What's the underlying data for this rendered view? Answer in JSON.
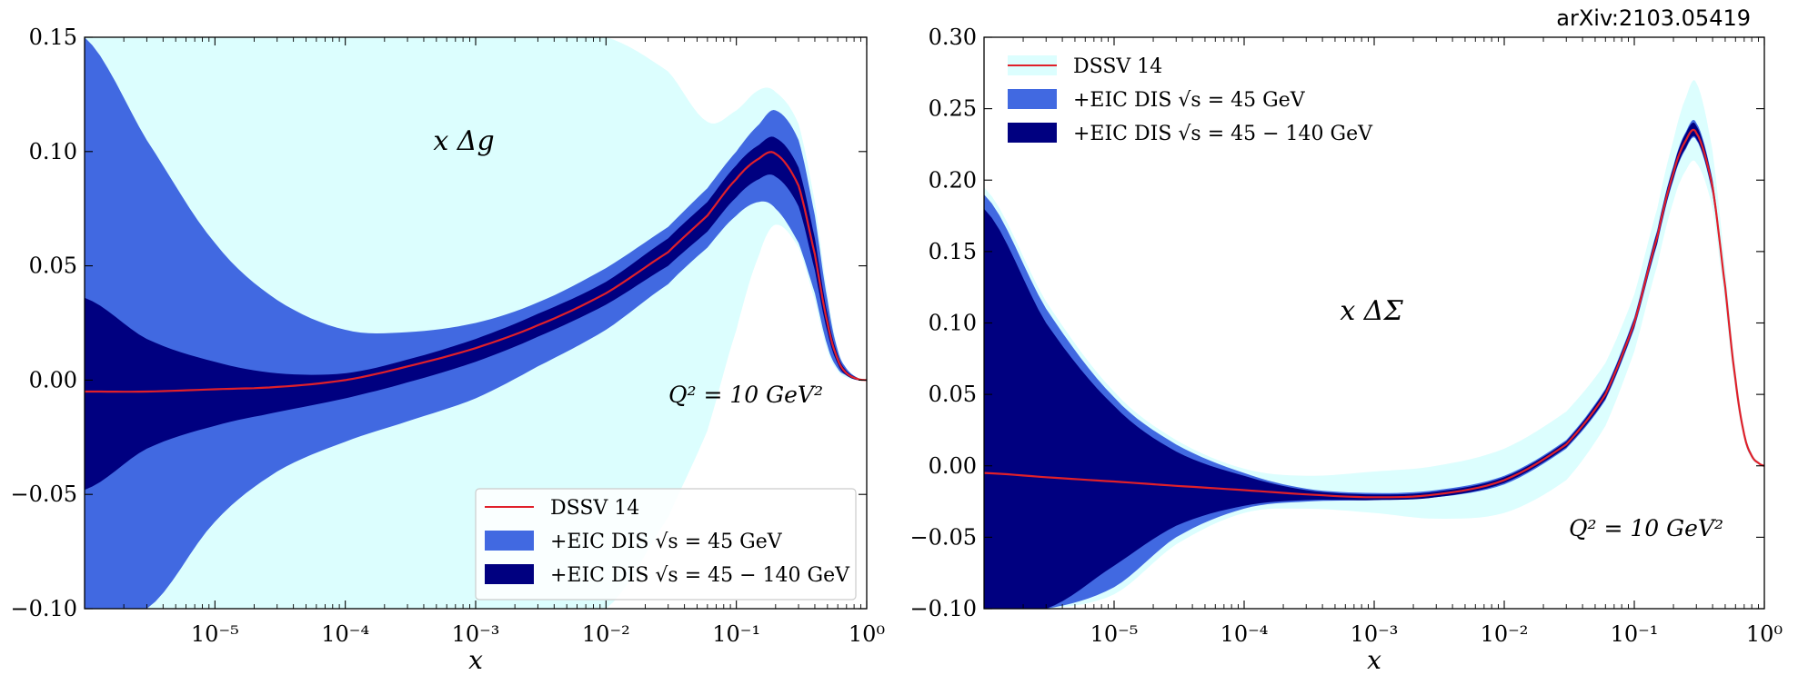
{
  "source_label": "arXiv:2103.05419",
  "colors": {
    "light_band": "#dcfefe",
    "mid_band": "#4169e1",
    "dark_band": "#000080",
    "central_line": "#e0202a"
  },
  "legend_entries": [
    "DSSV 14",
    "+EIC DIS √s = 45 GeV",
    "+EIC DIS √s = 45 − 140 GeV"
  ],
  "chart_data": [
    {
      "type": "line",
      "panel_label": "x Δg",
      "annotation": "Q² = 10 GeV²",
      "xlabel": "x",
      "ylabel": "",
      "x_scale": "log",
      "xlim": [
        1e-06,
        1
      ],
      "ylim": [
        -0.1,
        0.15
      ],
      "x_ticks": [
        1e-05,
        0.0001,
        0.001,
        0.01,
        0.1,
        1
      ],
      "x_tick_labels": [
        "10⁻⁵",
        "10⁻⁴",
        "10⁻³",
        "10⁻²",
        "10⁻¹",
        "10⁰"
      ],
      "y_ticks": [
        -0.1,
        -0.05,
        0.0,
        0.05,
        0.1,
        0.15
      ],
      "y_tick_labels": [
        "−0.10",
        "−0.05",
        "0.00",
        "0.05",
        "0.10",
        "0.15"
      ],
      "legend_position": "lower-right",
      "x": [
        1e-06,
        3e-06,
        1e-05,
        3e-05,
        0.0001,
        0.0003,
        0.001,
        0.003,
        0.01,
        0.03,
        0.06,
        0.1,
        0.15,
        0.2,
        0.3,
        0.4,
        0.5,
        0.6,
        0.7,
        0.85,
        1.0
      ],
      "series": [
        {
          "name": "DSSV 14",
          "kind": "line",
          "y": [
            -0.005,
            -0.005,
            -0.004,
            -0.003,
            0.0,
            0.006,
            0.014,
            0.024,
            0.038,
            0.056,
            0.072,
            0.088,
            0.097,
            0.099,
            0.085,
            0.055,
            0.025,
            0.009,
            0.003,
            0.0005,
            0.0
          ]
        },
        {
          "name": "+EIC DIS √s = 45 GeV",
          "kind": "band",
          "low": [
            -0.1,
            -0.1,
            -0.062,
            -0.04,
            -0.027,
            -0.018,
            -0.008,
            0.006,
            0.022,
            0.042,
            0.058,
            0.072,
            0.078,
            0.075,
            0.06,
            0.038,
            0.015,
            0.005,
            0.002,
            0.0,
            0.0
          ],
          "high": [
            0.15,
            0.105,
            0.06,
            0.035,
            0.022,
            0.021,
            0.025,
            0.034,
            0.049,
            0.067,
            0.084,
            0.1,
            0.112,
            0.118,
            0.105,
            0.072,
            0.035,
            0.013,
            0.005,
            0.001,
            0.0
          ]
        },
        {
          "name": "+EIC DIS √s = 45 − 140 GeV",
          "kind": "band",
          "low": [
            -0.048,
            -0.03,
            -0.02,
            -0.014,
            -0.008,
            -0.001,
            0.008,
            0.019,
            0.033,
            0.05,
            0.065,
            0.08,
            0.088,
            0.089,
            0.076,
            0.048,
            0.021,
            0.007,
            0.002,
            0.0,
            0.0
          ],
          "high": [
            0.036,
            0.018,
            0.008,
            0.003,
            0.003,
            0.009,
            0.018,
            0.029,
            0.043,
            0.062,
            0.078,
            0.094,
            0.103,
            0.106,
            0.093,
            0.062,
            0.029,
            0.011,
            0.004,
            0.001,
            0.0
          ]
        },
        {
          "name": "DSSV 14 uncertainty",
          "kind": "band",
          "low": [
            -0.1,
            -0.1,
            -0.1,
            -0.1,
            -0.1,
            -0.1,
            -0.1,
            -0.1,
            -0.1,
            -0.06,
            -0.022,
            0.022,
            0.055,
            0.068,
            0.058,
            0.035,
            0.013,
            0.004,
            0.001,
            0.0,
            0.0
          ],
          "high": [
            0.15,
            0.15,
            0.15,
            0.15,
            0.15,
            0.15,
            0.15,
            0.15,
            0.15,
            0.135,
            0.113,
            0.118,
            0.127,
            0.126,
            0.112,
            0.078,
            0.038,
            0.014,
            0.005,
            0.001,
            0.0
          ]
        }
      ]
    },
    {
      "type": "line",
      "panel_label": "x ΔΣ",
      "annotation": "Q² = 10 GeV²",
      "xlabel": "x",
      "ylabel": "",
      "x_scale": "log",
      "xlim": [
        1e-06,
        1
      ],
      "ylim": [
        -0.1,
        0.3
      ],
      "x_ticks": [
        1e-05,
        0.0001,
        0.001,
        0.01,
        0.1,
        1
      ],
      "x_tick_labels": [
        "10⁻⁵",
        "10⁻⁴",
        "10⁻³",
        "10⁻²",
        "10⁻¹",
        "10⁰"
      ],
      "y_ticks": [
        -0.1,
        -0.05,
        0.0,
        0.05,
        0.1,
        0.15,
        0.2,
        0.25,
        0.3
      ],
      "y_tick_labels": [
        "−0.10",
        "−0.05",
        "0.00",
        "0.05",
        "0.10",
        "0.15",
        "0.20",
        "0.25",
        "0.30"
      ],
      "legend_position": "top-left",
      "x": [
        1e-06,
        3e-06,
        1e-05,
        3e-05,
        0.0001,
        0.0003,
        0.001,
        0.003,
        0.01,
        0.03,
        0.06,
        0.1,
        0.15,
        0.2,
        0.25,
        0.3,
        0.4,
        0.5,
        0.6,
        0.7,
        0.8,
        0.9,
        1.0
      ],
      "series": [
        {
          "name": "DSSV 14",
          "kind": "line",
          "y": [
            -0.005,
            -0.008,
            -0.011,
            -0.014,
            -0.017,
            -0.02,
            -0.022,
            -0.02,
            -0.01,
            0.015,
            0.05,
            0.1,
            0.16,
            0.205,
            0.228,
            0.233,
            0.195,
            0.125,
            0.06,
            0.022,
            0.007,
            0.002,
            0.0
          ]
        },
        {
          "name": "+EIC DIS √s = 45 GeV",
          "kind": "band",
          "low": [
            -0.1,
            -0.1,
            -0.085,
            -0.05,
            -0.03,
            -0.025,
            -0.024,
            -0.022,
            -0.013,
            0.012,
            0.046,
            0.096,
            0.155,
            0.2,
            0.222,
            0.228,
            0.19,
            0.121,
            0.057,
            0.02,
            0.006,
            0.002,
            0.0
          ],
          "high": [
            0.19,
            0.11,
            0.048,
            0.015,
            -0.005,
            -0.016,
            -0.019,
            -0.017,
            -0.007,
            0.018,
            0.054,
            0.104,
            0.165,
            0.21,
            0.234,
            0.24,
            0.2,
            0.129,
            0.063,
            0.024,
            0.008,
            0.002,
            0.0
          ]
        },
        {
          "name": "+EIC DIS √s = 45 − 140 GeV",
          "kind": "band",
          "low": [
            -0.1,
            -0.1,
            -0.07,
            -0.042,
            -0.028,
            -0.024,
            -0.024,
            -0.022,
            -0.012,
            0.013,
            0.047,
            0.097,
            0.156,
            0.201,
            0.223,
            0.229,
            0.191,
            0.122,
            0.058,
            0.02,
            0.006,
            0.002,
            0.0
          ],
          "high": [
            0.18,
            0.1,
            0.042,
            0.01,
            -0.007,
            -0.017,
            -0.02,
            -0.018,
            -0.008,
            0.017,
            0.053,
            0.103,
            0.164,
            0.209,
            0.233,
            0.238,
            0.199,
            0.128,
            0.062,
            0.023,
            0.008,
            0.002,
            0.0
          ]
        },
        {
          "name": "DSSV 14 uncertainty",
          "kind": "band",
          "low": [
            -0.1,
            -0.1,
            -0.09,
            -0.055,
            -0.033,
            -0.03,
            -0.033,
            -0.037,
            -0.033,
            -0.01,
            0.028,
            0.08,
            0.14,
            0.185,
            0.207,
            0.212,
            0.18,
            0.112,
            0.052,
            0.018,
            0.005,
            0.001,
            0.0
          ],
          "high": [
            0.195,
            0.115,
            0.052,
            0.018,
            -0.002,
            -0.007,
            -0.004,
            0.0,
            0.012,
            0.038,
            0.072,
            0.12,
            0.18,
            0.228,
            0.258,
            0.268,
            0.22,
            0.14,
            0.068,
            0.026,
            0.009,
            0.003,
            0.0
          ]
        }
      ]
    }
  ]
}
